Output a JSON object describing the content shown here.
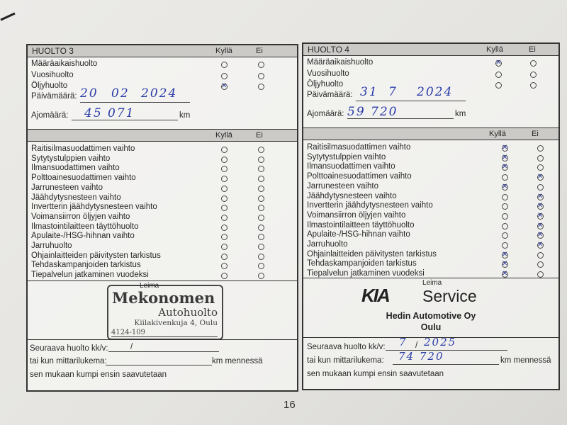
{
  "page_number": "16",
  "columns": {
    "yes": "Kyllä",
    "no": "Ei"
  },
  "labels": {
    "date": "Päivämäärä:",
    "mileage": "Ajomäärä:",
    "km": "km",
    "stamp": "Leima",
    "next_service": "Seuraava huolto kk/v:",
    "or_odometer": "tai kun mittarilukema:",
    "km_by": "km mennessä",
    "whichever": "sen mukaan kumpi ensin saavutetaan"
  },
  "service_types": [
    "Määräaikaishuolto",
    "Vuosihuolto",
    "Öljyhuolto"
  ],
  "checklist": [
    "Raitisilmasuodattimen vaihto",
    "Sytytystulppien vaihto",
    "Ilmansuodattimen vaihto",
    "Polttoainesuodattimen vaihto",
    "Jarrunesteen vaihto",
    "Jäähdytysnesteen vaihto",
    "Invertterin jäähdytysnesteen vaihto",
    "Voimansiirron öljyjen vaihto",
    "Ilmastointilaitteen täyttöhuolto",
    "Apulaite-/HSG-hihnan vaihto",
    "Jarruhuolto",
    "Ohjainlaitteiden päivitysten tarkistus",
    "Tehdaskampanjoiden tarkistus",
    "Tiepalvelun jatkaminen vuodeksi"
  ],
  "ink_color": "#2b3ca8",
  "huolto3": {
    "title": "HUOLTO 3",
    "service_marks": [
      null,
      null,
      "yes"
    ],
    "date": {
      "day": "20",
      "month": "02",
      "year": "2024"
    },
    "mileage": "45 071",
    "checklist_marks": [
      null,
      null,
      null,
      null,
      null,
      null,
      null,
      null,
      null,
      null,
      null,
      null,
      null,
      null
    ],
    "stamp": {
      "name": "Mekonomen",
      "line2": "Autohuolto",
      "address": "Kiilakivenkuja 4, Oulu",
      "code": "4124-109"
    },
    "next": {
      "month": "",
      "year": "",
      "odometer": ""
    }
  },
  "huolto4": {
    "title": "HUOLTO 4",
    "service_marks": [
      "yes",
      null,
      null
    ],
    "date": {
      "day": "31",
      "month": "7",
      "year": "2024"
    },
    "mileage": "59 720",
    "checklist_marks": [
      "yes",
      "yes",
      "yes",
      "no",
      "yes",
      "no",
      "no",
      "no",
      "no",
      "no",
      "no",
      "yes",
      "yes",
      "yes"
    ],
    "stamp": {
      "brand": "KIA",
      "service": "Service",
      "company": "Hedin Automotive Oy",
      "city": "Oulu"
    },
    "next": {
      "month": "7",
      "year": "2025",
      "odometer": "74 720"
    }
  }
}
